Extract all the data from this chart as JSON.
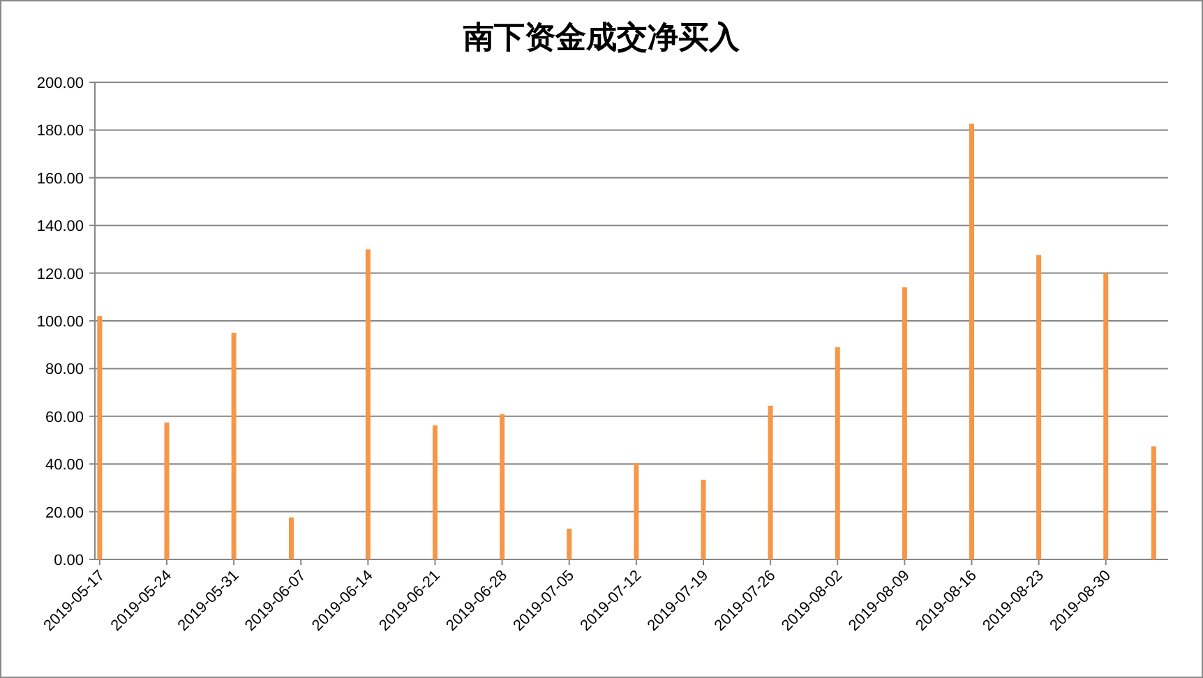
{
  "chart_data": {
    "type": "bar",
    "title": "南下资金成交净买入",
    "x": [
      "2019-05-17",
      "2019-05-24",
      "2019-05-31",
      "2019-06-06",
      "2019-06-14",
      "2019-06-21",
      "2019-06-28",
      "2019-07-05",
      "2019-07-12",
      "2019-07-19",
      "2019-07-26",
      "2019-08-02",
      "2019-08-09",
      "2019-08-16",
      "2019-08-23",
      "2019-08-30",
      "2019-09-04"
    ],
    "values": [
      102,
      57.4,
      95,
      17.6,
      130,
      56.2,
      60.9,
      12.9,
      40.4,
      33.4,
      64.4,
      89,
      114.1,
      182.6,
      127.6,
      120,
      47.4
    ],
    "color": "#f79646",
    "xlim": [
      "2019-05-16T12:00",
      "2019-09-05T12:00"
    ],
    "xticks": [
      "2019-05-17",
      "2019-05-24",
      "2019-05-31",
      "2019-06-07",
      "2019-06-14",
      "2019-06-21",
      "2019-06-28",
      "2019-07-05",
      "2019-07-12",
      "2019-07-19",
      "2019-07-26",
      "2019-08-02",
      "2019-08-09",
      "2019-08-16",
      "2019-08-23",
      "2019-08-30"
    ],
    "ylim": [
      0,
      200
    ],
    "yticks": [
      {
        "value": 0,
        "label": "0.00"
      },
      {
        "value": 20,
        "label": "20.00"
      },
      {
        "value": 40,
        "label": "40.00"
      },
      {
        "value": 60,
        "label": "60.00"
      },
      {
        "value": 80,
        "label": "80.00"
      },
      {
        "value": 100,
        "label": "100.00"
      },
      {
        "value": 120,
        "label": "120.00"
      },
      {
        "value": 140,
        "label": "140.00"
      },
      {
        "value": 160,
        "label": "160.00"
      },
      {
        "value": 180,
        "label": "180.00"
      },
      {
        "value": 200,
        "label": "200.00"
      }
    ],
    "grid": "y"
  }
}
